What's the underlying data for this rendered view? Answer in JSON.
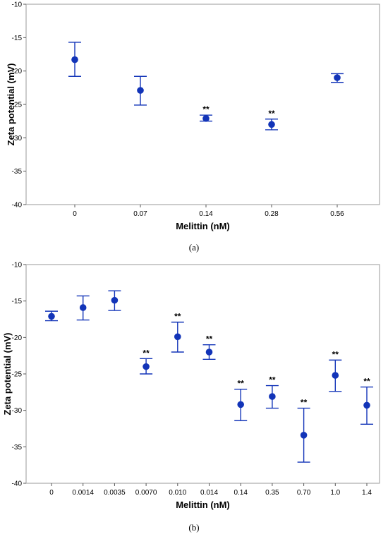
{
  "colors": {
    "marker": "#1234b8",
    "frame": "#9a9a9a",
    "tick": "#555555"
  },
  "chart_data": [
    {
      "type": "scatter",
      "panel_label": "(a)",
      "xlabel": "Melittin (nM)",
      "ylabel": "Zeta potential (mV)",
      "ylim": [
        -40,
        -10
      ],
      "yticks": [
        -10,
        -15,
        -20,
        -25,
        -30,
        -35,
        -40
      ],
      "grid": false,
      "categories": [
        "0",
        "0.07",
        "0.14",
        "0.28",
        "0.56"
      ],
      "values": [
        -18.3,
        -22.9,
        -27.1,
        -28.0,
        -21.0
      ],
      "err_high": [
        -15.7,
        -20.8,
        -26.6,
        -27.2,
        -20.4
      ],
      "err_low": [
        -20.8,
        -25.1,
        -27.5,
        -28.8,
        -21.7
      ],
      "annotations": [
        "",
        "",
        "**",
        "**",
        ""
      ]
    },
    {
      "type": "scatter",
      "panel_label": "(b)",
      "xlabel": "Melittin (nM)",
      "ylabel": "Zeta potential (mV)",
      "ylim": [
        -40,
        -10
      ],
      "yticks": [
        -10,
        -15,
        -20,
        -25,
        -30,
        -35,
        -40
      ],
      "grid": false,
      "categories": [
        "0",
        "0.0014",
        "0.0035",
        "0.0070",
        "0.010",
        "0.014",
        "0.14",
        "0.35",
        "0.70",
        "1.0",
        "1.4"
      ],
      "values": [
        -17.1,
        -15.9,
        -14.9,
        -24.0,
        -19.9,
        -22.0,
        -29.2,
        -28.1,
        -33.4,
        -25.2,
        -29.3
      ],
      "err_high": [
        -16.4,
        -14.3,
        -13.6,
        -22.9,
        -17.9,
        -21.0,
        -27.1,
        -26.6,
        -29.7,
        -23.1,
        -26.8
      ],
      "err_low": [
        -17.7,
        -17.6,
        -16.3,
        -25.0,
        -22.0,
        -23.0,
        -31.4,
        -29.7,
        -37.1,
        -27.4,
        -31.9
      ],
      "annotations": [
        "",
        "",
        "",
        "**",
        "**",
        "**",
        "**",
        "**",
        "**",
        "**",
        "**"
      ]
    }
  ]
}
